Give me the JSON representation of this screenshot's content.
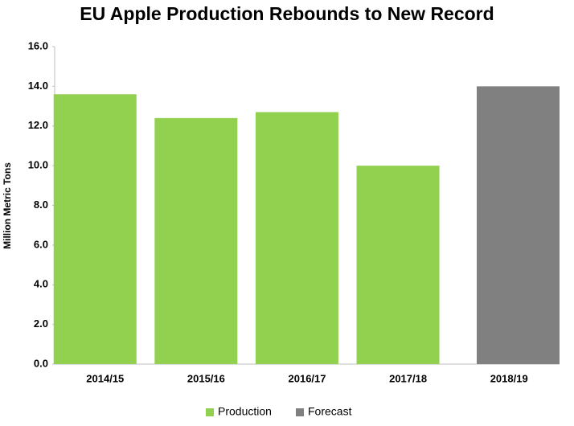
{
  "chart_data": {
    "type": "bar",
    "title": "EU Apple Production Rebounds to New Record",
    "y_label": "Million Metric Tons",
    "categories": [
      "2014/15",
      "2015/16",
      "2016/17",
      "2017/18",
      "2018/19"
    ],
    "series": [
      {
        "name": "Production",
        "color": "#92d050",
        "values": [
          13.6,
          12.4,
          12.7,
          10.0,
          null
        ]
      },
      {
        "name": "Forecast",
        "color": "#808080",
        "values": [
          null,
          null,
          null,
          null,
          14.0
        ]
      }
    ],
    "ylim": [
      0,
      16
    ],
    "yticks": [
      {
        "value": 0,
        "label": "0.0"
      },
      {
        "value": 2,
        "label": "2.0"
      },
      {
        "value": 4,
        "label": "4.0"
      },
      {
        "value": 6,
        "label": "6.0"
      },
      {
        "value": 8,
        "label": "8.0"
      },
      {
        "value": 10,
        "label": "10.0"
      },
      {
        "value": 12,
        "label": "12.0"
      },
      {
        "value": 14,
        "label": "14.0"
      },
      {
        "value": 16,
        "label": "16.0"
      }
    ],
    "grid": false,
    "legend": "bottom"
  }
}
